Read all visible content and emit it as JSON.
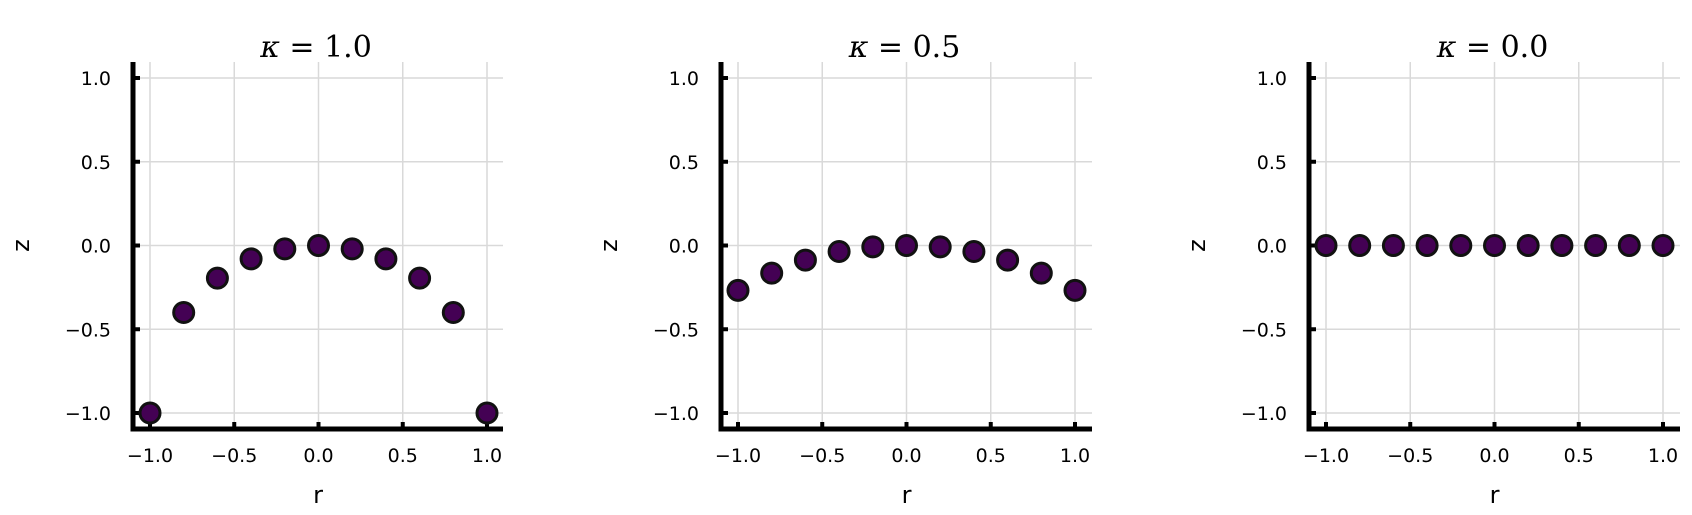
{
  "colors": {
    "marker_fill": "#440154",
    "marker_edge": "#111111",
    "grid": "#d9d9d9",
    "axis": "#000000"
  },
  "chart_data": [
    {
      "type": "scatter",
      "title_symbol": "κ",
      "title_value": "= 1.0",
      "xlabel": "r",
      "ylabel": "z",
      "xlim": [
        -1.1,
        1.1
      ],
      "ylim": [
        -1.1,
        1.1
      ],
      "xticks": [
        "−1.0",
        "−0.5",
        "0.0",
        "0.5",
        "1.0"
      ],
      "yticks": [
        "1.0",
        "0.5",
        "0.0",
        "−0.5",
        "−1.0"
      ],
      "grid": true,
      "x": [
        -1.0,
        -0.8,
        -0.6,
        -0.4,
        -0.2,
        0.0,
        0.2,
        0.4,
        0.6,
        0.8,
        1.0
      ],
      "y": [
        -1.0,
        -0.4,
        -0.195,
        -0.08,
        -0.02,
        0.0,
        -0.02,
        -0.08,
        -0.195,
        -0.4,
        -1.0
      ]
    },
    {
      "type": "scatter",
      "title_symbol": "κ",
      "title_value": "= 0.5",
      "xlabel": "r",
      "ylabel": "z",
      "xlim": [
        -1.1,
        1.1
      ],
      "ylim": [
        -1.1,
        1.1
      ],
      "xticks": [
        "−1.0",
        "−0.5",
        "0.0",
        "0.5",
        "1.0"
      ],
      "yticks": [
        "1.0",
        "0.5",
        "0.0",
        "−0.5",
        "−1.0"
      ],
      "grid": true,
      "x": [
        -1.0,
        -0.8,
        -0.6,
        -0.4,
        -0.2,
        0.0,
        0.2,
        0.4,
        0.6,
        0.8,
        1.0
      ],
      "y": [
        -0.268,
        -0.165,
        -0.087,
        -0.036,
        -0.008,
        0.0,
        -0.008,
        -0.036,
        -0.087,
        -0.165,
        -0.268
      ]
    },
    {
      "type": "scatter",
      "title_symbol": "κ",
      "title_value": "= 0.0",
      "xlabel": "r",
      "ylabel": "z",
      "xlim": [
        -1.1,
        1.1
      ],
      "ylim": [
        -1.1,
        1.1
      ],
      "xticks": [
        "−1.0",
        "−0.5",
        "0.0",
        "0.5",
        "1.0"
      ],
      "yticks": [
        "1.0",
        "0.5",
        "0.0",
        "−0.5",
        "−1.0"
      ],
      "grid": true,
      "x": [
        -1.0,
        -0.8,
        -0.6,
        -0.4,
        -0.2,
        0.0,
        0.2,
        0.4,
        0.6,
        0.8,
        1.0
      ],
      "y": [
        0.0,
        0.0,
        0.0,
        0.0,
        0.0,
        0.0,
        0.0,
        0.0,
        0.0,
        0.0,
        0.0
      ]
    }
  ]
}
